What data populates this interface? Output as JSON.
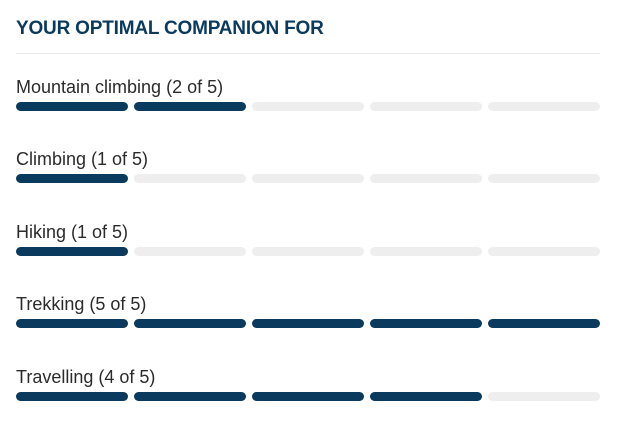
{
  "header": {
    "title": "YOUR OPTIMAL COMPANION FOR"
  },
  "colors": {
    "accent": "#0b3a5f",
    "empty_segment": "#eeeeee",
    "text": "#2b2b2b",
    "divider": "#e8e8e8"
  },
  "max_rating": 5,
  "ratings": [
    {
      "key": "mountain-climbing",
      "label": "Mountain climbing (2 of 5)",
      "value": 2
    },
    {
      "key": "climbing",
      "label": "Climbing (1 of 5)",
      "value": 1
    },
    {
      "key": "hiking",
      "label": "Hiking (1 of 5)",
      "value": 1
    },
    {
      "key": "trekking",
      "label": "Trekking (5 of 5)",
      "value": 5
    },
    {
      "key": "travelling",
      "label": "Travelling (4 of 5)",
      "value": 4
    }
  ]
}
